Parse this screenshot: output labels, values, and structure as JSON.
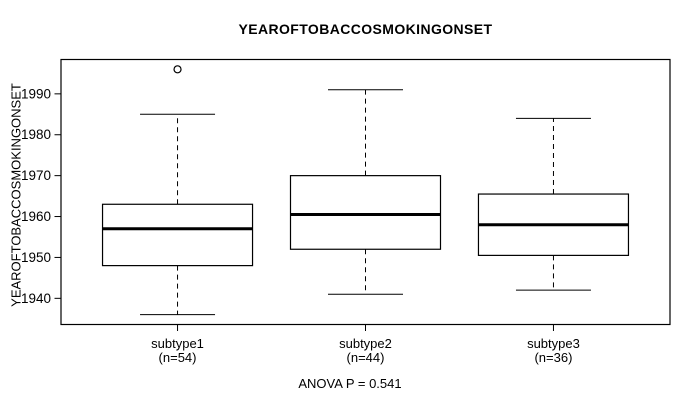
{
  "chart_data": {
    "type": "boxplot",
    "title": "YEAROFTOBACCOSMOKINGONSET",
    "ylabel": "YEAROFTOBACCOSMOKINGONSET",
    "xlabel": "",
    "ylim": [
      1933.6,
      1998.4
    ],
    "yticks": [
      1940,
      1950,
      1960,
      1970,
      1980,
      1990
    ],
    "grid": false,
    "annotation": "ANOVA P = 0.541",
    "groups": [
      {
        "label": "subtype1",
        "sublabel": "(n=54)",
        "n": 54,
        "whisker_low": 1936,
        "q1": 1948,
        "median": 1957,
        "q3": 1963,
        "whisker_high": 1985,
        "outliers": [
          1996
        ]
      },
      {
        "label": "subtype2",
        "sublabel": "(n=44)",
        "n": 44,
        "whisker_low": 1941,
        "q1": 1952,
        "median": 1960.5,
        "q3": 1970,
        "whisker_high": 1991,
        "outliers": []
      },
      {
        "label": "subtype3",
        "sublabel": "(n=36)",
        "n": 36,
        "whisker_low": 1942,
        "q1": 1950.5,
        "median": 1958,
        "q3": 1965.5,
        "whisker_high": 1984,
        "outliers": []
      }
    ],
    "colors": {
      "stroke": "#000000",
      "background": "#ffffff"
    }
  }
}
